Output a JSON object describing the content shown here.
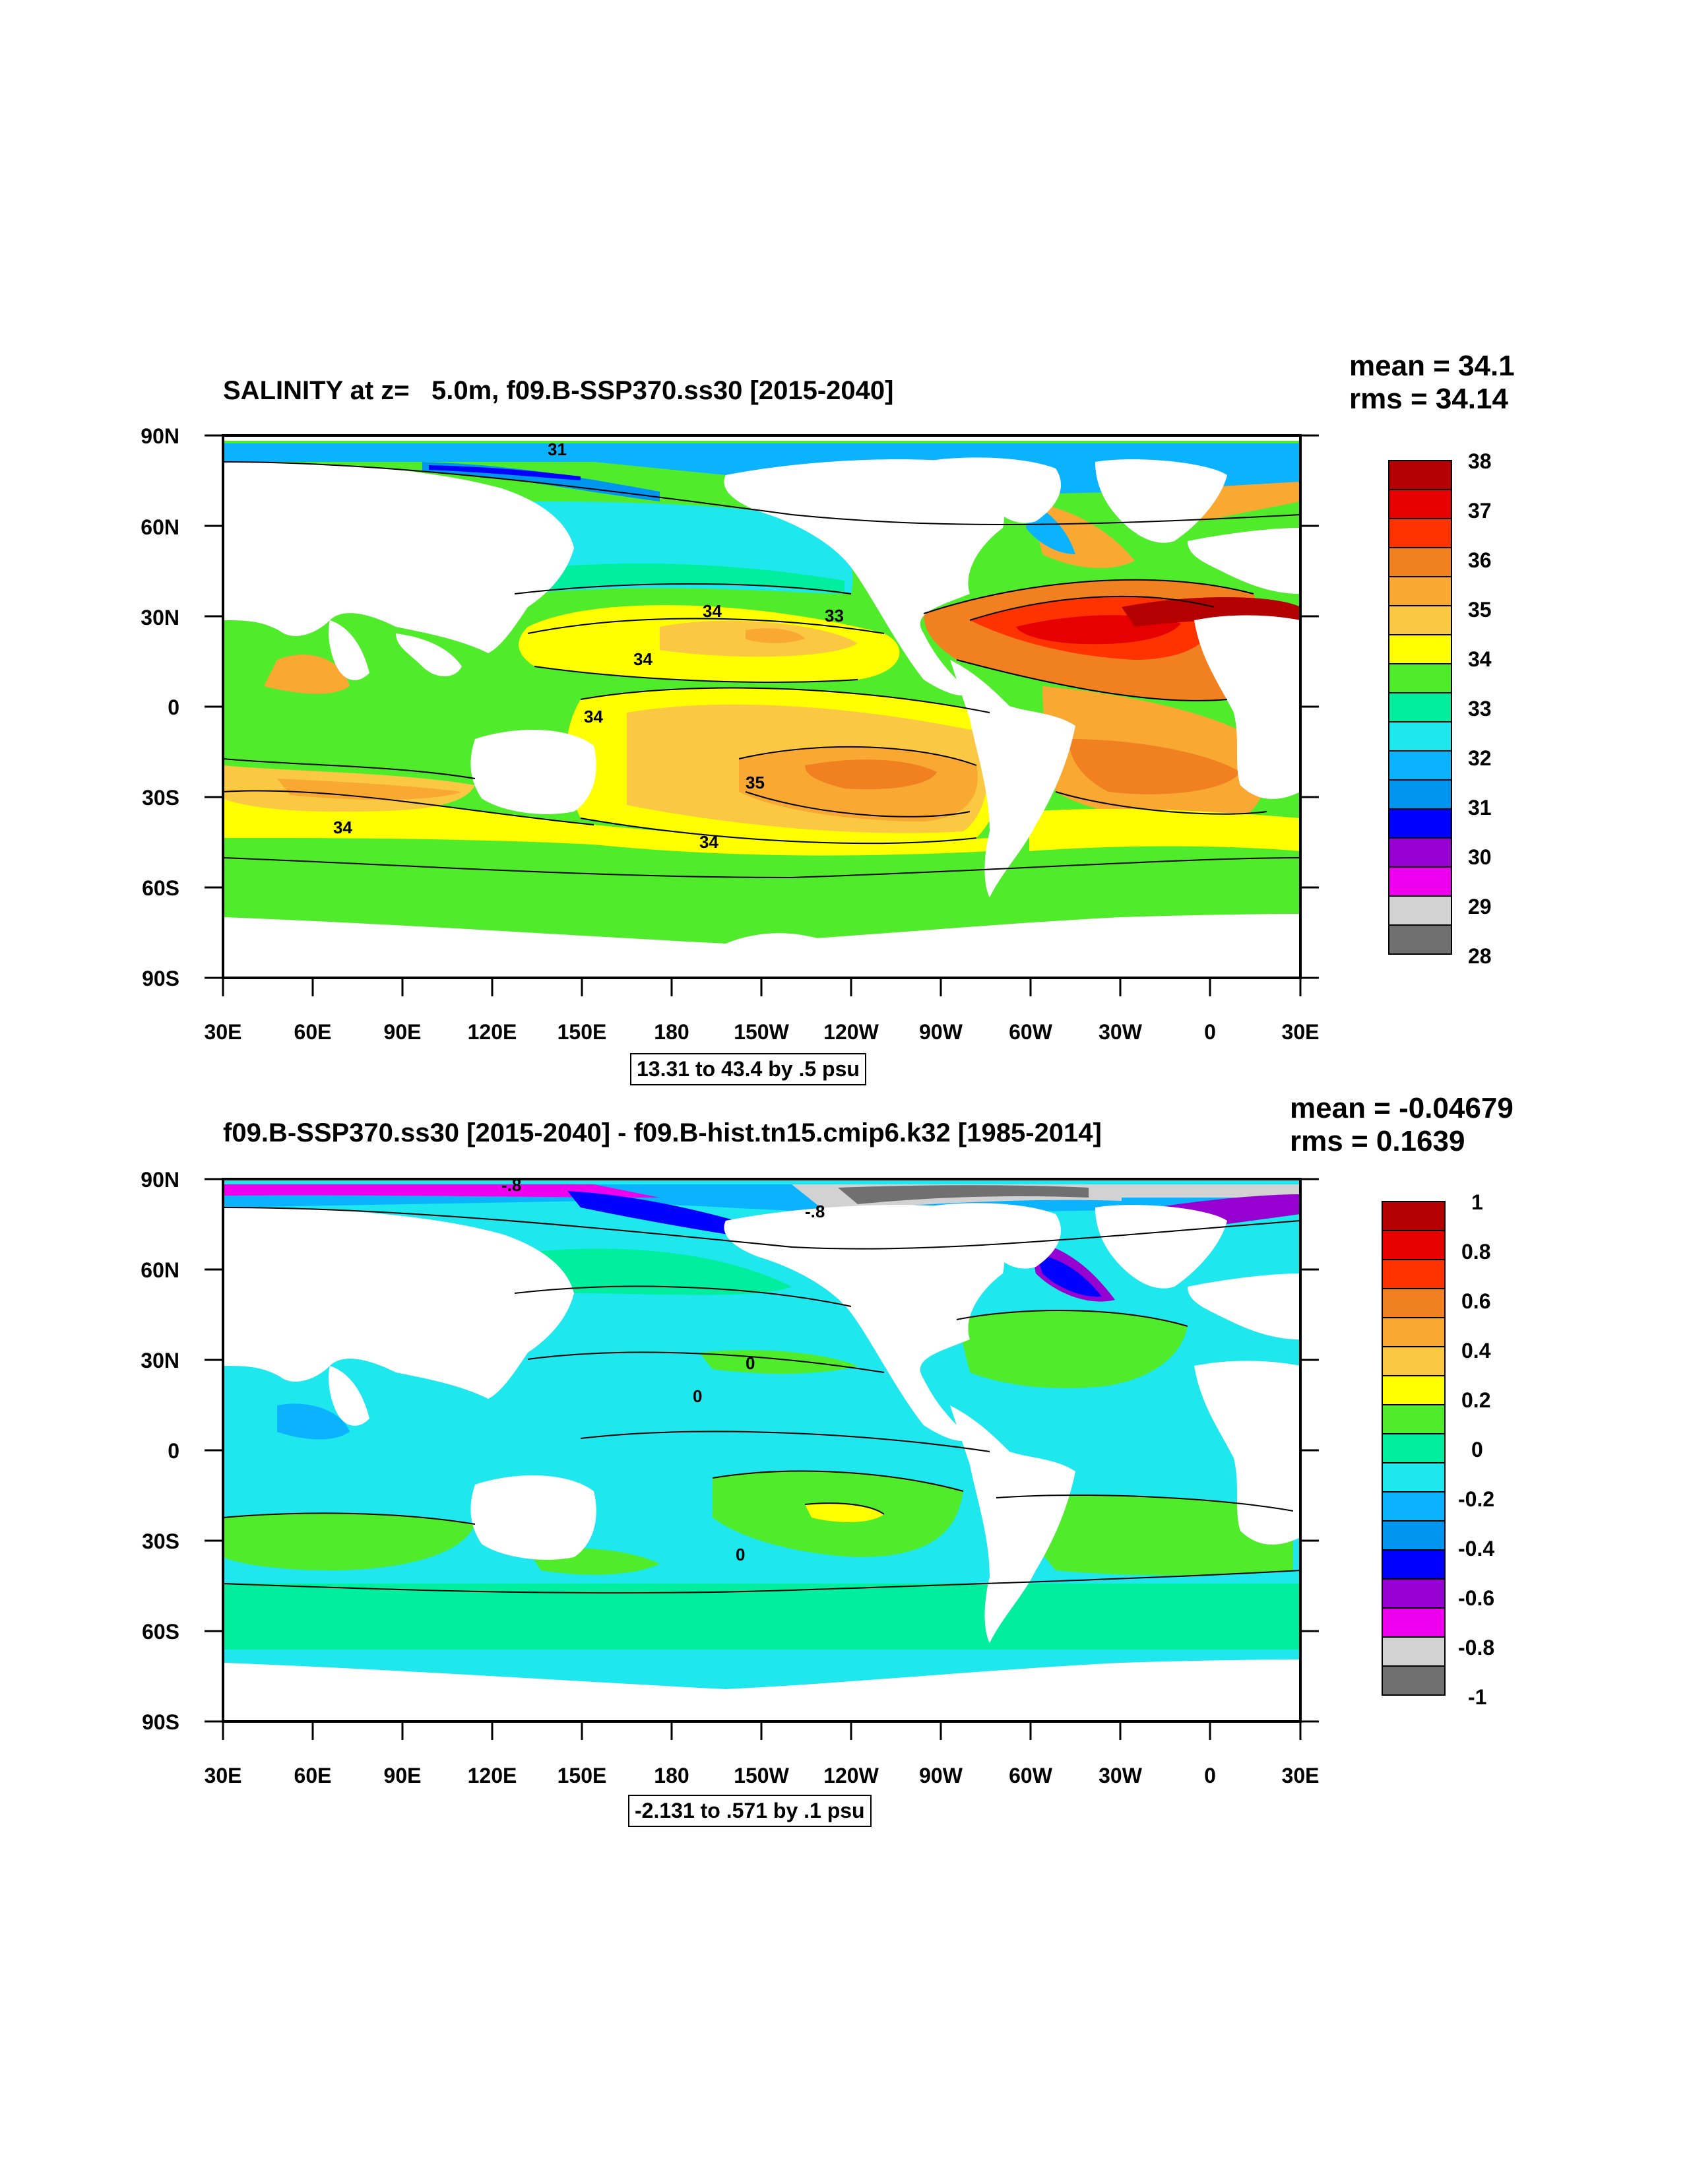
{
  "panel1": {
    "title": "SALINITY at z=   5.0m, f09.B-SSP370.ss30 [2015-2040]",
    "mean": "mean = 34.1",
    "rms": "rms = 34.14",
    "range": "13.31 to 43.4 by .5 psu",
    "contour_labels": [
      "31",
      "34",
      "33",
      "34",
      "34",
      "35",
      "34",
      "34"
    ],
    "colorbar": {
      "labels": [
        "38",
        "37",
        "36",
        "35",
        "34",
        "33",
        "32",
        "31",
        "30",
        "29",
        "28"
      ],
      "colors": [
        "#b40000",
        "#e60000",
        "#ff3300",
        "#f08020",
        "#f9a832",
        "#fac843",
        "#ffff00",
        "#50ec2c",
        "#00ee9e",
        "#1ee8ee",
        "#0bb3ff",
        "#0096f0",
        "#0000ff",
        "#9600d0",
        "#ee00ee",
        "#d2d2d2",
        "#707070"
      ]
    }
  },
  "panel2": {
    "title": "f09.B-SSP370.ss30 [2015-2040] - f09.B-hist.tn15.cmip6.k32 [1985-2014]",
    "mean": "mean = -0.04679",
    "rms": "rms = 0.1639",
    "range": "-2.131 to .571 by .1 psu",
    "contour_labels": [
      "-.8",
      "-.8",
      "0",
      "0",
      "0"
    ],
    "colorbar": {
      "labels": [
        "1",
        "0.8",
        "0.6",
        "0.4",
        "0.2",
        "0",
        "-0.2",
        "-0.4",
        "-0.6",
        "-0.8",
        "-1"
      ],
      "colors": [
        "#b40000",
        "#e60000",
        "#ff3300",
        "#f08020",
        "#f9a832",
        "#fac843",
        "#ffff00",
        "#50ec2c",
        "#00ee9e",
        "#1ee8ee",
        "#0bb3ff",
        "#0096f0",
        "#0000ff",
        "#9600d0",
        "#ee00ee",
        "#d2d2d2",
        "#707070"
      ]
    }
  },
  "axes": {
    "lat_labels": [
      "90N",
      "60N",
      "30N",
      "0",
      "30S",
      "60S",
      "90S"
    ],
    "lon_labels": [
      "30E",
      "60E",
      "90E",
      "120E",
      "150E",
      "180",
      "150W",
      "120W",
      "90W",
      "60W",
      "30W",
      "0",
      "30E"
    ]
  }
}
